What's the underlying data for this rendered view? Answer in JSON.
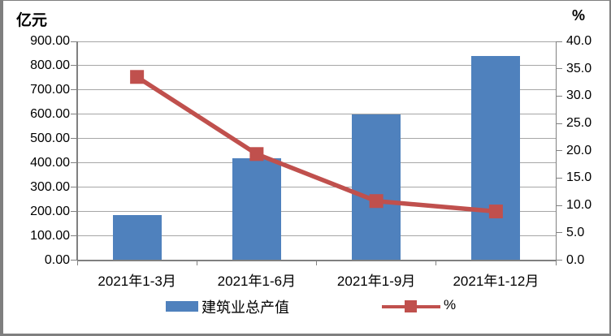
{
  "chart_data": {
    "type": "bar",
    "subtype": "bar+line combo, dual axis",
    "categories": [
      "2021年1-3月",
      "2021年1-6月",
      "2021年1-9月",
      "2021年1-12月"
    ],
    "series": [
      {
        "name": "建筑业总产值",
        "type": "bar",
        "axis": "left",
        "values": [
          185,
          420,
          600,
          840
        ],
        "color": "#4F81BD"
      },
      {
        "name": "%",
        "type": "line",
        "axis": "right",
        "values": [
          33.5,
          19.4,
          10.8,
          8.9
        ],
        "color": "#C0504D",
        "marker": "square"
      }
    ],
    "left_axis": {
      "title": "亿元",
      "min": 0,
      "max": 900,
      "step": 100,
      "tick_labels": [
        "0.00",
        "100.00",
        "200.00",
        "300.00",
        "400.00",
        "500.00",
        "600.00",
        "700.00",
        "800.00",
        "900.00"
      ]
    },
    "right_axis": {
      "title": "%",
      "min": 0,
      "max": 40,
      "step": 5,
      "tick_labels": [
        "0.0",
        "5.0",
        "10.0",
        "15.0",
        "20.0",
        "25.0",
        "30.0",
        "35.0",
        "40.0"
      ]
    },
    "grid": true,
    "legend_position": "bottom"
  },
  "colors": {
    "bar": "#4F81BD",
    "line": "#C0504D",
    "gridline": "#A6A6A6",
    "axis": "#808080",
    "border": "#7F7F7F",
    "text": "#000000",
    "background": "#FFFFFF"
  }
}
